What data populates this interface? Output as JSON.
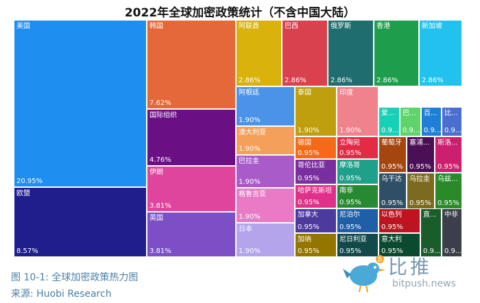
{
  "chart_data": {
    "type": "treemap",
    "title": "2022年全球加密政策统计（不含中国大陆）",
    "cells": [
      {
        "name": "美国",
        "pct": "20.95%",
        "value": 20.95,
        "color": "#1f8ef1"
      },
      {
        "name": "欧盟",
        "pct": "8.57%",
        "value": 8.57,
        "color": "#1f1e8c"
      },
      {
        "name": "韩国",
        "pct": "7.62%",
        "value": 7.62,
        "color": "#e4683a"
      },
      {
        "name": "国际组织",
        "pct": "4.76%",
        "value": 4.76,
        "color": "#6b0f84"
      },
      {
        "name": "伊朗",
        "pct": "3.81%",
        "value": 3.81,
        "color": "#e0459e"
      },
      {
        "name": "英国",
        "pct": "3.81%",
        "value": 3.81,
        "color": "#7d4fc7"
      },
      {
        "name": "阿联酋",
        "pct": "2.86%",
        "value": 2.86,
        "color": "#d9b20c"
      },
      {
        "name": "巴西",
        "pct": "2.86%",
        "value": 2.86,
        "color": "#d9414f"
      },
      {
        "name": "俄罗斯",
        "pct": "2.86%",
        "value": 2.86,
        "color": "#1f6d6e"
      },
      {
        "name": "香港",
        "pct": "2.86%",
        "value": 2.86,
        "color": "#1e9e4d"
      },
      {
        "name": "新加坡",
        "pct": "2.86%",
        "value": 2.86,
        "color": "#23c2ee"
      },
      {
        "name": "阿根廷",
        "pct": "1.90%",
        "value": 1.9,
        "color": "#4b93e8"
      },
      {
        "name": "澳大利亚",
        "pct": "1.90%",
        "value": 1.9,
        "color": "#f5a05a"
      },
      {
        "name": "巴拉圭",
        "pct": "1.90%",
        "value": 1.9,
        "color": "#a85bc9"
      },
      {
        "name": "格鲁吉亚",
        "pct": "1.90%",
        "value": 1.9,
        "color": "#e87ac6"
      },
      {
        "name": "日本",
        "pct": "1.90%",
        "value": 1.9,
        "color": "#b4a4ec"
      },
      {
        "name": "泰国",
        "pct": "1.90%",
        "value": 1.9,
        "color": "#bf9f0d"
      },
      {
        "name": "印度",
        "pct": "1.90%",
        "value": 1.9,
        "color": "#f0828c"
      },
      {
        "name": "爱...",
        "pct": "0.9...",
        "value": 0.95,
        "color": "#16d1b5"
      },
      {
        "name": "巴...",
        "pct": "0.9...",
        "value": 0.95,
        "color": "#5ed46a"
      },
      {
        "name": "百...",
        "pct": "0.9...",
        "value": 0.95,
        "color": "#1f7fd6"
      },
      {
        "name": "比...",
        "pct": "0.9...",
        "value": 0.95,
        "color": "#4a6fd0"
      },
      {
        "name": "德国",
        "pct": "0.95%",
        "value": 0.95,
        "color": "#f56a16"
      },
      {
        "name": "立陶宛",
        "pct": "0.95%",
        "value": 0.95,
        "color": "#e52a45"
      },
      {
        "name": "葡萄牙",
        "pct": "0.95%",
        "value": 0.95,
        "color": "#a5460f"
      },
      {
        "name": "塞浦...",
        "pct": "0.95%",
        "value": 0.95,
        "color": "#4a0f55"
      },
      {
        "name": "斯洛...",
        "pct": "0.95%",
        "value": 0.95,
        "color": "#cc1f6d"
      },
      {
        "name": "哥伦比亚",
        "pct": "0.95%",
        "value": 0.95,
        "color": "#7a2fa0"
      },
      {
        "name": "摩洛哥",
        "pct": "0.95%",
        "value": 0.95,
        "color": "#1fa08a"
      },
      {
        "name": "乌干达",
        "pct": "0.95%",
        "value": 0.95,
        "color": "#2f4f66"
      },
      {
        "name": "乌拉圭",
        "pct": "0.95%",
        "value": 0.95,
        "color": "#7c6b1e"
      },
      {
        "name": "乌兹...",
        "pct": "0.95%",
        "value": 0.95,
        "color": "#2a8a2a"
      },
      {
        "name": "哈萨克斯坦",
        "pct": "0.95%",
        "value": 0.95,
        "color": "#e0308a"
      },
      {
        "name": "南非",
        "pct": "0.95%",
        "value": 0.95,
        "color": "#278a32"
      },
      {
        "name": "加拿大",
        "pct": "0.95%",
        "value": 0.95,
        "color": "#4c3a9c"
      },
      {
        "name": "尼泊尔",
        "pct": "0.95%",
        "value": 0.95,
        "color": "#1f5fa8"
      },
      {
        "name": "以色列",
        "pct": "0.95%",
        "value": 0.95,
        "color": "#bd1420"
      },
      {
        "name": "直...",
        "pct": "0.9...",
        "value": 0.95,
        "color": "#1a5c2a"
      },
      {
        "name": "中非",
        "pct": "0.9...",
        "value": 0.95,
        "color": "#3a3f4a"
      },
      {
        "name": "加纳",
        "pct": "0.95%",
        "value": 0.95,
        "color": "#947500"
      },
      {
        "name": "尼日利亚",
        "pct": "0.95%",
        "value": 0.95,
        "color": "#124a4c"
      },
      {
        "name": "意大利",
        "pct": "0.95%",
        "value": 0.95,
        "color": "#0b4a2f"
      }
    ]
  },
  "caption": {
    "figure": "图 10-1:  全球加密政策热力图",
    "source": "来源: Huobi Research"
  },
  "watermark": {
    "cn": "比推",
    "en": "bitpush.news"
  }
}
